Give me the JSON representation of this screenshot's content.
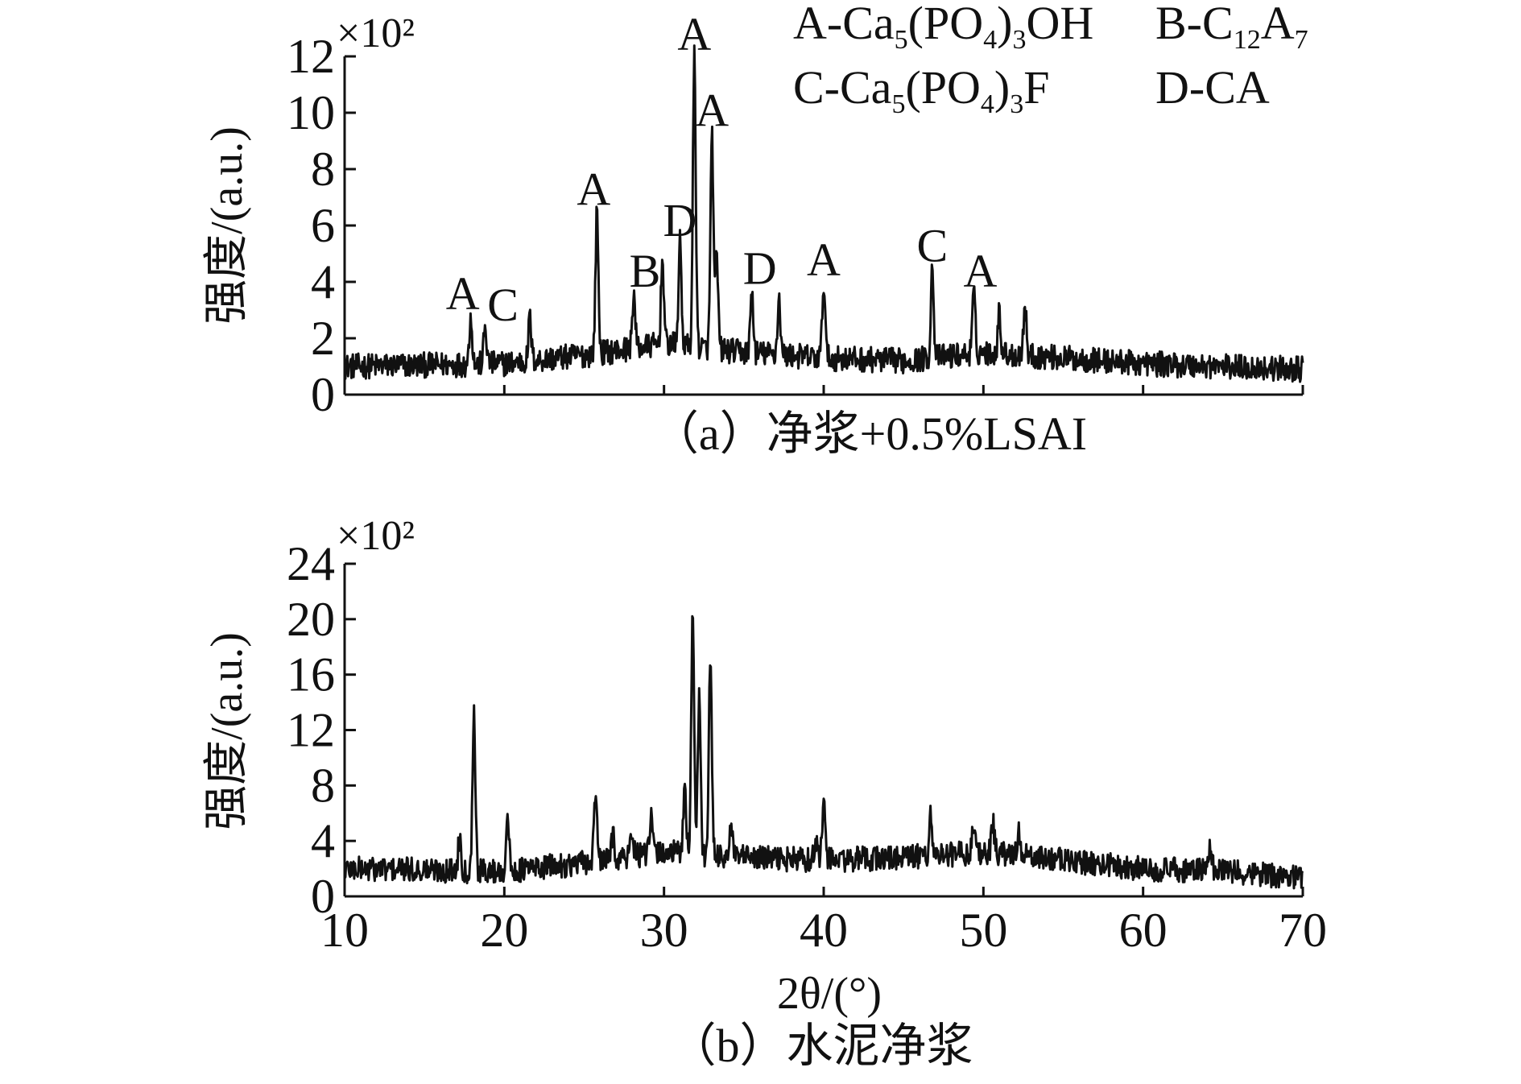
{
  "figure": {
    "legend": [
      {
        "key": "A",
        "main": "A-Ca",
        "subs": [
          [
            "5",
            "(PO"
          ],
          [
            "4",
            ")"
          ],
          [
            "3",
            "OH"
          ]
        ]
      },
      {
        "key": "B",
        "main": "B-C",
        "subs": [
          [
            "12",
            "A"
          ],
          [
            "7",
            ""
          ]
        ]
      },
      {
        "key": "C",
        "main": "C-Ca",
        "subs": [
          [
            "5",
            "(PO"
          ],
          [
            "4",
            ")"
          ],
          [
            "3",
            "F"
          ]
        ]
      },
      {
        "key": "D",
        "main": "D-CA",
        "subs": []
      }
    ]
  },
  "chart_data": [
    {
      "id": "a",
      "type": "line",
      "caption": "（a）净浆+0.5%LSAI",
      "ylabel": "强度/(a.u.)",
      "multiplier": "×10²",
      "xlim": [
        10,
        70
      ],
      "ylim": [
        0,
        12
      ],
      "yticks": [
        0,
        2,
        4,
        6,
        8,
        10,
        12
      ],
      "xticks_labels_shown": false,
      "baseline": [
        [
          10,
          1.0
        ],
        [
          20,
          1.1
        ],
        [
          25,
          1.4
        ],
        [
          30,
          1.8
        ],
        [
          35,
          1.5
        ],
        [
          40,
          1.3
        ],
        [
          45,
          1.2
        ],
        [
          50,
          1.5
        ],
        [
          55,
          1.3
        ],
        [
          60,
          1.1
        ],
        [
          65,
          1.0
        ],
        [
          70,
          0.9
        ]
      ],
      "peaks": [
        {
          "x": 17.9,
          "y": 2.8,
          "label": "A"
        },
        {
          "x": 18.8,
          "y": 2.4,
          "label": "C"
        },
        {
          "x": 21.6,
          "y": 2.7,
          "label": ""
        },
        {
          "x": 25.8,
          "y": 6.5,
          "label": "A"
        },
        {
          "x": 28.1,
          "y": 3.6,
          "label": "B"
        },
        {
          "x": 29.9,
          "y": 4.8,
          "label": ""
        },
        {
          "x": 31.0,
          "y": 5.4,
          "label": "D"
        },
        {
          "x": 31.9,
          "y": 12.0,
          "label": "A"
        },
        {
          "x": 33.0,
          "y": 9.3,
          "label": "A"
        },
        {
          "x": 33.3,
          "y": 4.8,
          "label": ""
        },
        {
          "x": 35.5,
          "y": 3.7,
          "label": "D"
        },
        {
          "x": 37.2,
          "y": 3.4,
          "label": ""
        },
        {
          "x": 40.0,
          "y": 4.0,
          "label": "A"
        },
        {
          "x": 46.8,
          "y": 4.5,
          "label": "C"
        },
        {
          "x": 49.4,
          "y": 3.6,
          "label": "A"
        },
        {
          "x": 51.0,
          "y": 2.9,
          "label": ""
        },
        {
          "x": 52.6,
          "y": 3.2,
          "label": ""
        }
      ]
    },
    {
      "id": "b",
      "type": "line",
      "caption": "（b）水泥净浆",
      "ylabel": "强度/(a.u.)",
      "xlabel": "2θ/(°)",
      "multiplier": "×10²",
      "xlim": [
        10,
        70
      ],
      "ylim": [
        0,
        24
      ],
      "yticks": [
        0,
        4,
        8,
        12,
        16,
        20,
        24
      ],
      "xticks": [
        10,
        20,
        30,
        40,
        50,
        60,
        70
      ],
      "baseline": [
        [
          10,
          2.0
        ],
        [
          20,
          1.8
        ],
        [
          25,
          2.4
        ],
        [
          30,
          3.2
        ],
        [
          35,
          2.8
        ],
        [
          40,
          2.6
        ],
        [
          45,
          2.8
        ],
        [
          50,
          3.2
        ],
        [
          55,
          2.6
        ],
        [
          60,
          2.0
        ],
        [
          65,
          1.8
        ],
        [
          70,
          1.4
        ]
      ],
      "peaks": [
        {
          "x": 17.2,
          "y": 4.4
        },
        {
          "x": 18.1,
          "y": 13.3
        },
        {
          "x": 20.2,
          "y": 5.8
        },
        {
          "x": 25.7,
          "y": 7.6
        },
        {
          "x": 26.8,
          "y": 4.6
        },
        {
          "x": 28.0,
          "y": 4.8
        },
        {
          "x": 29.2,
          "y": 5.7
        },
        {
          "x": 31.3,
          "y": 8.2
        },
        {
          "x": 31.8,
          "y": 20.6
        },
        {
          "x": 32.2,
          "y": 14.3
        },
        {
          "x": 32.9,
          "y": 17.1
        },
        {
          "x": 34.2,
          "y": 5.0
        },
        {
          "x": 39.5,
          "y": 4.2
        },
        {
          "x": 40.0,
          "y": 7.2
        },
        {
          "x": 46.7,
          "y": 6.0
        },
        {
          "x": 49.4,
          "y": 5.3
        },
        {
          "x": 50.6,
          "y": 5.2
        },
        {
          "x": 52.2,
          "y": 4.6
        },
        {
          "x": 64.2,
          "y": 3.8
        }
      ]
    }
  ]
}
